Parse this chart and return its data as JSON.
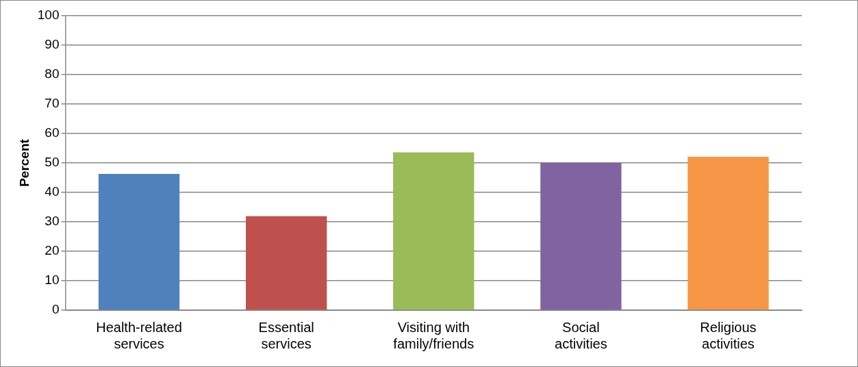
{
  "chart_data": {
    "type": "bar",
    "ylabel": "Percent",
    "categories": [
      "Health-related services",
      "Essential services",
      "Visiting with family/friends",
      "Social activities",
      "Religious activities"
    ],
    "values": [
      46.3,
      31.9,
      53.6,
      50,
      52.1
    ],
    "colors": [
      "#4f81bd",
      "#c0504d",
      "#9bbb59",
      "#8064a2",
      "#f79646"
    ],
    "ylim": [
      0,
      100
    ],
    "yticks": [
      0,
      10,
      20,
      30,
      40,
      50,
      60,
      70,
      80,
      90,
      100
    ],
    "grid": "y",
    "legend": false
  }
}
